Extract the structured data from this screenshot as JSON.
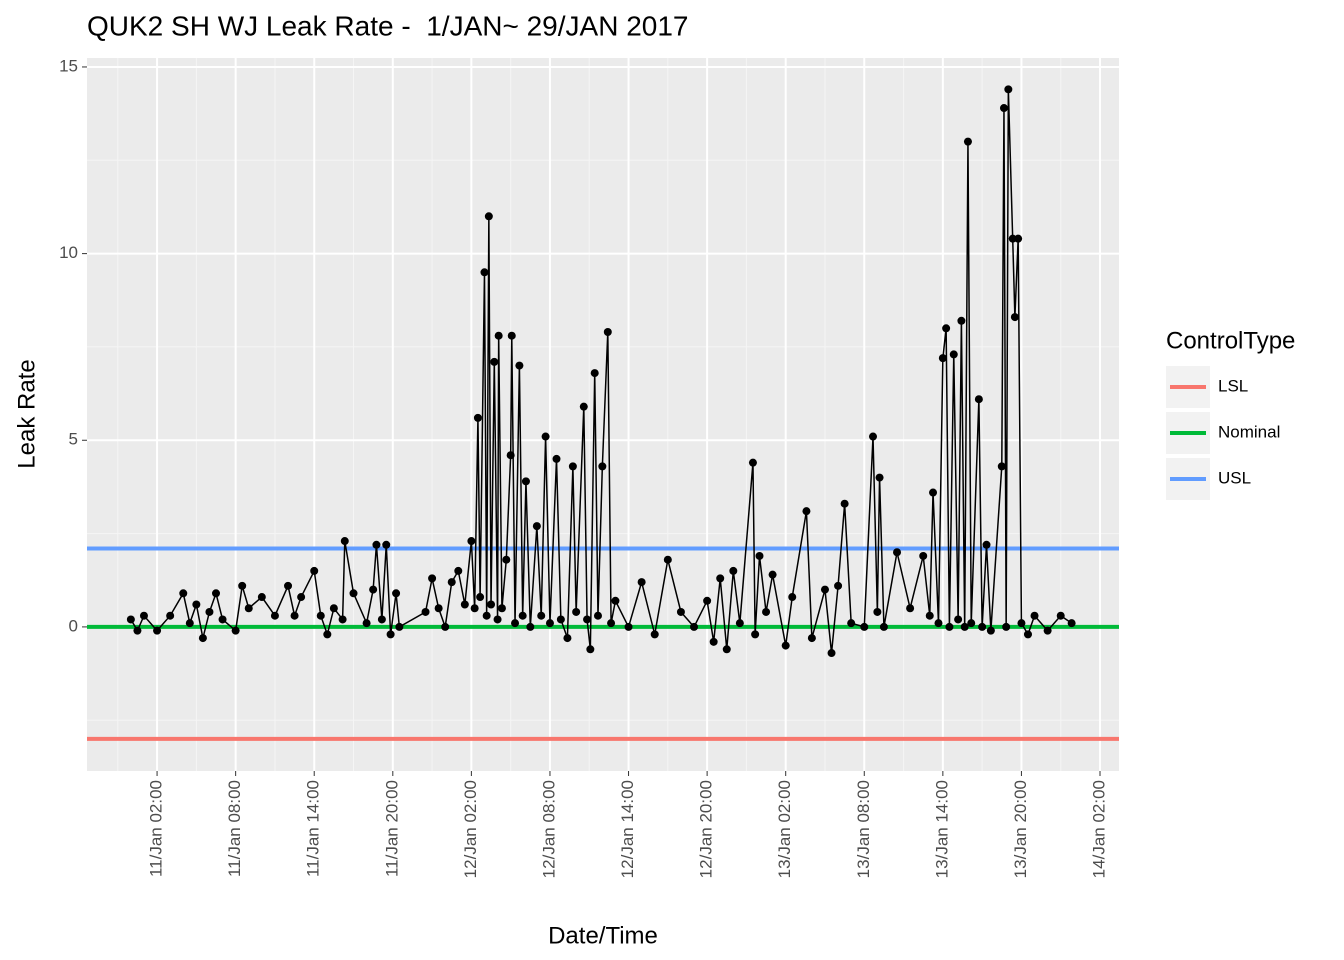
{
  "chart_data": {
    "type": "line",
    "title": "QUK2 SH WJ Leak Rate -  1/JAN~ 29/JAN 2017",
    "x_label": "Date/Time",
    "y_label": "Leak Rate",
    "legend_title": "ControlType",
    "legend_position": "right",
    "grid": true,
    "xlim": [
      "10/Jan 20:39",
      "14/Jan 03:27"
    ],
    "xticks": [
      "11/Jan 02:00",
      "11/Jan 08:00",
      "11/Jan 14:00",
      "11/Jan 20:00",
      "12/Jan 02:00",
      "12/Jan 08:00",
      "12/Jan 14:00",
      "12/Jan 20:00",
      "13/Jan 02:00",
      "13/Jan 08:00",
      "13/Jan 14:00",
      "13/Jan 20:00",
      "14/Jan 02:00"
    ],
    "ylim": [
      -3.86,
      15.24
    ],
    "yticks": [
      0,
      5,
      10,
      15
    ],
    "control_lines": [
      {
        "name": "LSL",
        "color": "#f8766d",
        "value": -3
      },
      {
        "name": "Nominal",
        "color": "#00ba38",
        "value": 0
      },
      {
        "name": "USL",
        "color": "#619cff",
        "value": 2.1
      }
    ],
    "series": [
      {
        "color": "#000000",
        "x": [
          "11/Jan 00:00",
          "11/Jan 00:30",
          "11/Jan 01:00",
          "11/Jan 02:00",
          "11/Jan 03:00",
          "11/Jan 04:00",
          "11/Jan 04:30",
          "11/Jan 05:00",
          "11/Jan 05:30",
          "11/Jan 06:00",
          "11/Jan 06:30",
          "11/Jan 07:00",
          "11/Jan 08:00",
          "11/Jan 08:30",
          "11/Jan 09:00",
          "11/Jan 10:00",
          "11/Jan 11:00",
          "11/Jan 12:00",
          "11/Jan 12:30",
          "11/Jan 13:00",
          "11/Jan 14:00",
          "11/Jan 14:30",
          "11/Jan 15:00",
          "11/Jan 15:30",
          "11/Jan 16:10",
          "11/Jan 16:20",
          "11/Jan 17:00",
          "11/Jan 18:00",
          "11/Jan 18:30",
          "11/Jan 18:45",
          "11/Jan 19:10",
          "11/Jan 19:30",
          "11/Jan 19:50",
          "11/Jan 20:15",
          "11/Jan 20:30",
          "11/Jan 22:30",
          "11/Jan 23:00",
          "11/Jan 23:30",
          "12/Jan 00:00",
          "12/Jan 00:30",
          "12/Jan 01:00",
          "12/Jan 01:30",
          "12/Jan 02:00",
          "12/Jan 02:15",
          "12/Jan 02:30",
          "12/Jan 02:40",
          "12/Jan 03:00",
          "12/Jan 03:10",
          "12/Jan 03:20",
          "12/Jan 03:30",
          "12/Jan 03:45",
          "12/Jan 04:00",
          "12/Jan 04:05",
          "12/Jan 04:20",
          "12/Jan 04:40",
          "12/Jan 05:00",
          "12/Jan 05:05",
          "12/Jan 05:20",
          "12/Jan 05:40",
          "12/Jan 05:55",
          "12/Jan 06:10",
          "12/Jan 06:30",
          "12/Jan 07:00",
          "12/Jan 07:20",
          "12/Jan 07:40",
          "12/Jan 08:00",
          "12/Jan 08:30",
          "12/Jan 08:50",
          "12/Jan 09:20",
          "12/Jan 09:45",
          "12/Jan 10:00",
          "12/Jan 10:35",
          "12/Jan 10:50",
          "12/Jan 11:05",
          "12/Jan 11:25",
          "12/Jan 11:40",
          "12/Jan 12:00",
          "12/Jan 12:25",
          "12/Jan 12:40",
          "12/Jan 13:00",
          "12/Jan 14:00",
          "12/Jan 15:00",
          "12/Jan 16:00",
          "12/Jan 17:00",
          "12/Jan 18:00",
          "12/Jan 19:00",
          "12/Jan 20:00",
          "12/Jan 20:30",
          "12/Jan 21:00",
          "12/Jan 21:30",
          "12/Jan 22:00",
          "12/Jan 22:30",
          "12/Jan 23:30",
          "12/Jan 23:40",
          "13/Jan 00:00",
          "13/Jan 00:30",
          "13/Jan 01:00",
          "13/Jan 02:00",
          "13/Jan 02:30",
          "13/Jan 03:35",
          "13/Jan 04:00",
          "13/Jan 05:00",
          "13/Jan 05:30",
          "13/Jan 06:00",
          "13/Jan 06:30",
          "13/Jan 07:00",
          "13/Jan 08:00",
          "13/Jan 08:40",
          "13/Jan 09:00",
          "13/Jan 09:10",
          "13/Jan 09:30",
          "13/Jan 10:30",
          "13/Jan 11:30",
          "13/Jan 12:30",
          "13/Jan 13:00",
          "13/Jan 13:15",
          "13/Jan 13:40",
          "13/Jan 14:00",
          "13/Jan 14:15",
          "13/Jan 14:30",
          "13/Jan 14:50",
          "13/Jan 15:10",
          "13/Jan 15:25",
          "13/Jan 15:40",
          "13/Jan 15:55",
          "13/Jan 16:10",
          "13/Jan 16:45",
          "13/Jan 17:00",
          "13/Jan 17:20",
          "13/Jan 17:40",
          "13/Jan 18:30",
          "13/Jan 18:40",
          "13/Jan 18:50",
          "13/Jan 19:00",
          "13/Jan 19:20",
          "13/Jan 19:30",
          "13/Jan 19:45",
          "13/Jan 20:00",
          "13/Jan 20:30",
          "13/Jan 21:00",
          "13/Jan 22:00",
          "13/Jan 23:00",
          "13/Jan 23:50"
        ],
        "values": [
          0.2,
          -0.1,
          0.3,
          -0.1,
          0.3,
          0.9,
          0.1,
          0.6,
          -0.3,
          0.4,
          0.9,
          0.2,
          -0.1,
          1.1,
          0.5,
          0.8,
          0.3,
          1.1,
          0.3,
          0.8,
          1.5,
          0.3,
          -0.2,
          0.5,
          0.2,
          2.3,
          0.9,
          0.1,
          1.0,
          2.2,
          0.2,
          2.2,
          -0.2,
          0.9,
          0.0,
          0.4,
          1.3,
          0.5,
          0.0,
          1.2,
          1.5,
          0.6,
          2.3,
          0.5,
          5.6,
          0.8,
          9.5,
          0.3,
          11.0,
          0.6,
          7.1,
          0.2,
          7.8,
          0.5,
          1.8,
          4.6,
          7.8,
          0.1,
          7.0,
          0.3,
          3.9,
          0.0,
          2.7,
          0.3,
          5.1,
          0.1,
          4.5,
          0.2,
          -0.3,
          4.3,
          0.4,
          5.9,
          0.2,
          -0.6,
          6.8,
          0.3,
          4.3,
          7.9,
          0.1,
          0.7,
          0.0,
          1.2,
          -0.2,
          1.8,
          0.4,
          0.0,
          0.7,
          -0.4,
          1.3,
          -0.6,
          1.5,
          0.1,
          4.4,
          -0.2,
          1.9,
          0.4,
          1.4,
          -0.5,
          0.8,
          3.1,
          -0.3,
          1.0,
          -0.7,
          1.1,
          3.3,
          0.1,
          0.0,
          5.1,
          0.4,
          4.0,
          0.0,
          2.0,
          0.5,
          1.9,
          0.3,
          3.6,
          0.1,
          7.2,
          8.0,
          0.0,
          7.3,
          0.2,
          8.2,
          0.0,
          13.0,
          0.1,
          6.1,
          0.0,
          2.2,
          -0.1,
          4.3,
          13.9,
          0.0,
          14.4,
          10.4,
          8.3,
          10.4,
          0.1,
          -0.2,
          0.3,
          -0.1,
          0.3,
          0.1
        ]
      }
    ]
  }
}
